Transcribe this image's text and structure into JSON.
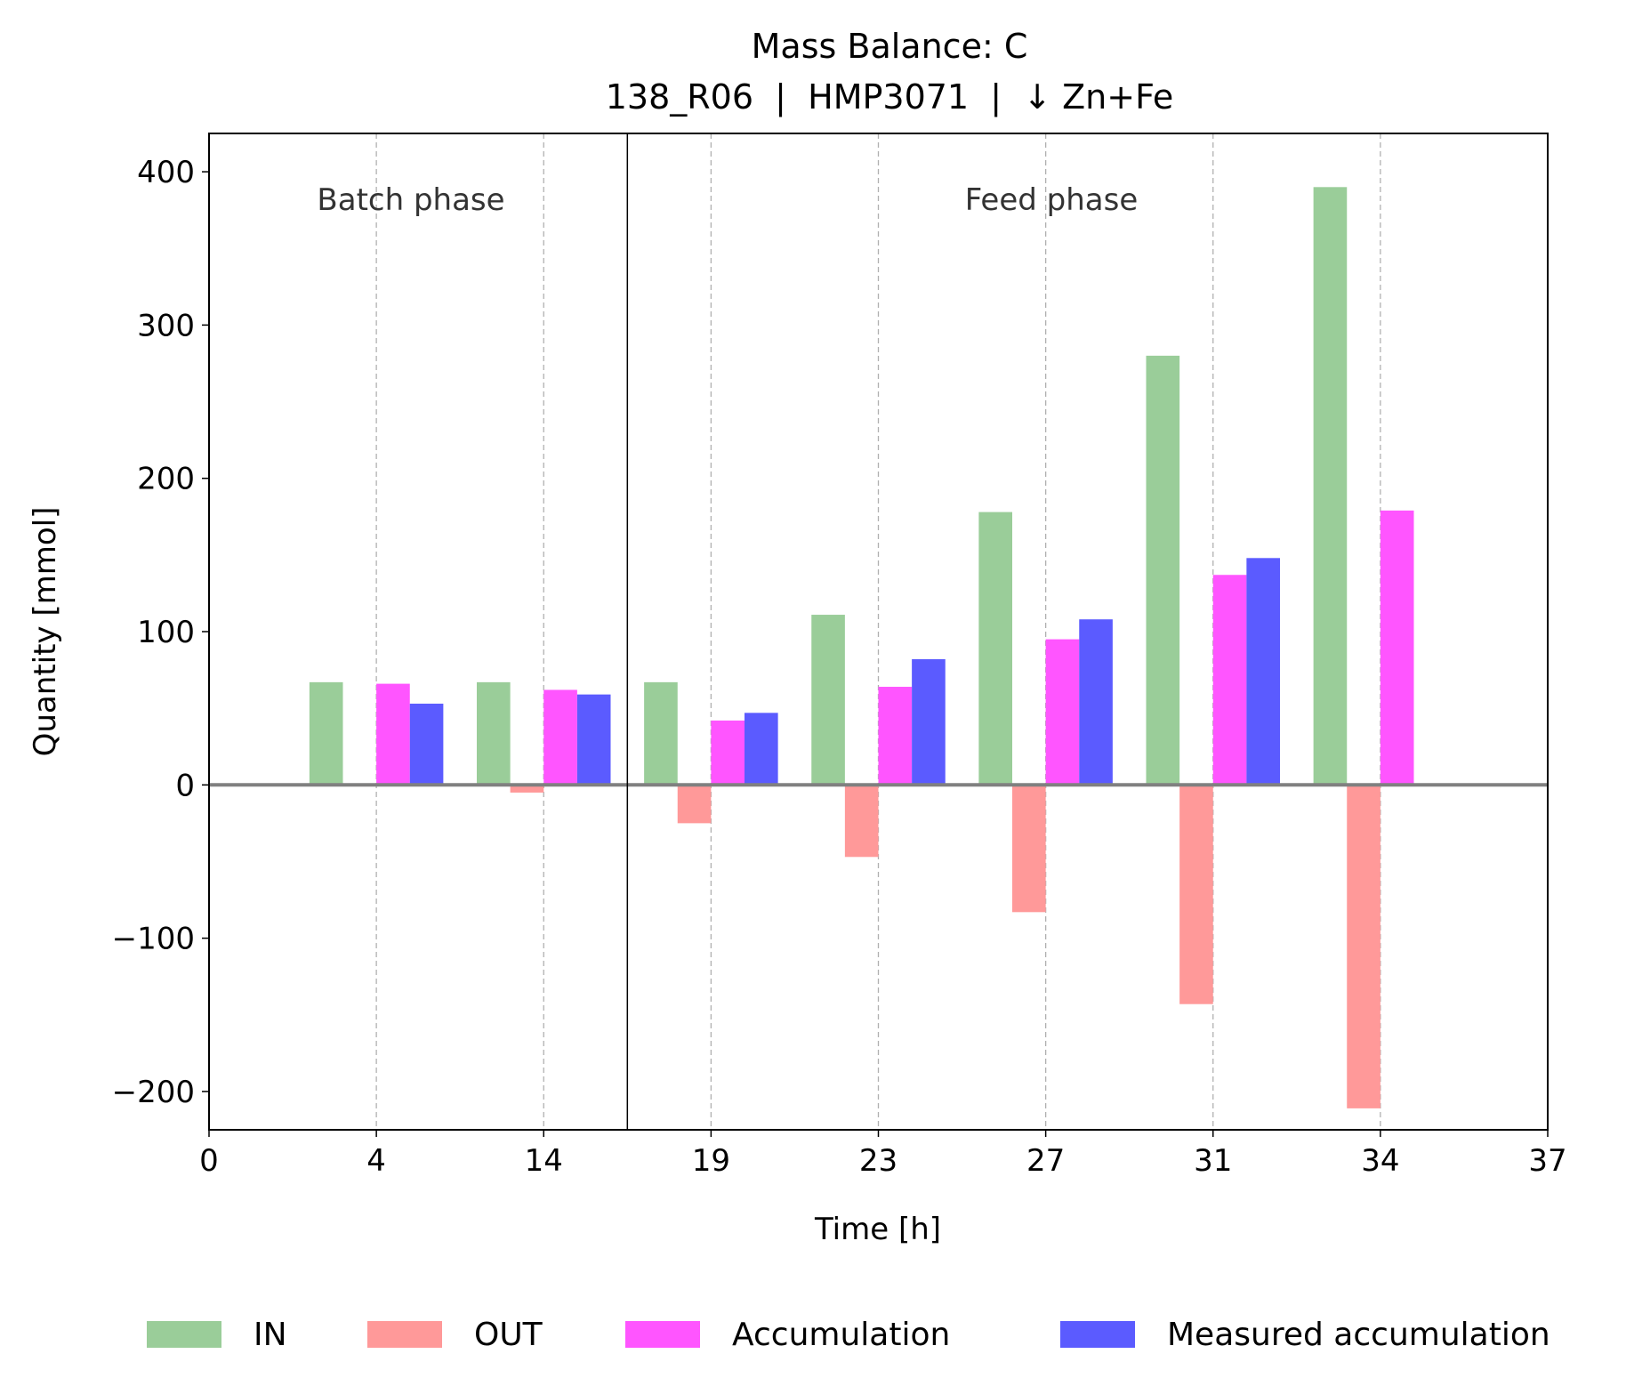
{
  "chart_data": {
    "type": "bar",
    "title": "Mass Balance: C",
    "subtitle": "138_R06  |  HMP3071  |  ↓ Zn+Fe",
    "xlabel": "Time [h]",
    "ylabel": "Quantity [mmol]",
    "ylim": [
      -225,
      425
    ],
    "yticks": [
      -200,
      -100,
      0,
      100,
      200,
      300,
      400
    ],
    "ytick_labels": [
      "−200",
      "−100",
      "0",
      "100",
      "200",
      "300",
      "400"
    ],
    "xtick_labels": [
      "0",
      "4",
      "14",
      "19",
      "23",
      "27",
      "31",
      "34",
      "37"
    ],
    "categories": [
      "4",
      "14",
      "19",
      "23",
      "27",
      "31",
      "34"
    ],
    "series": [
      {
        "name": "IN",
        "color": "#9ACD99",
        "values": [
          67,
          67,
          67,
          111,
          178,
          280,
          390
        ]
      },
      {
        "name": "OUT",
        "color": "#FF9999",
        "values": [
          -1,
          -5,
          -25,
          -47,
          -83,
          -143,
          -211
        ]
      },
      {
        "name": "Accumulation",
        "color": "#FF55FF",
        "values": [
          66,
          62,
          42,
          64,
          95,
          137,
          179
        ]
      },
      {
        "name": "Measured accumulation",
        "color": "#5B5BFF",
        "values": [
          53,
          59,
          47,
          82,
          108,
          148,
          null
        ]
      }
    ],
    "phase_divider_after_category": "14",
    "annotations": [
      {
        "text": "Batch phase",
        "phase": "batch"
      },
      {
        "text": "Feed phase",
        "phase": "feed"
      }
    ],
    "grid": "vertical dashed",
    "legend": "bottom"
  }
}
